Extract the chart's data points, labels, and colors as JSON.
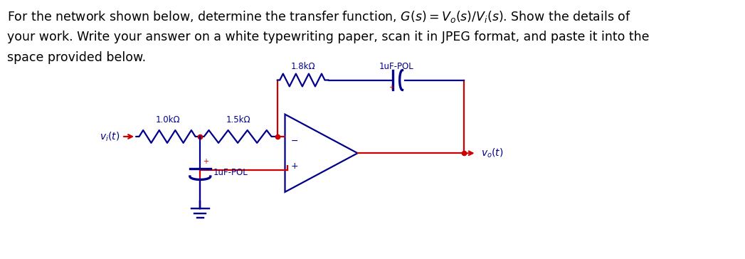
{
  "wire_color": "#CC0000",
  "component_color": "#00008B",
  "bg_color": "#FFFFFF",
  "R1_label": "1.0kΩ",
  "R2_label": "1.5kΩ",
  "R3_label": "1.8kΩ",
  "C1_label": "1uF-POL",
  "C2_label": "1uF-POL",
  "vi_label": "v_i(t)",
  "vo_label": "v_o(t)",
  "title_fontsize": 12.5,
  "label_fontsize": 8.5,
  "lw_wire": 1.6,
  "lw_comp": 1.6
}
